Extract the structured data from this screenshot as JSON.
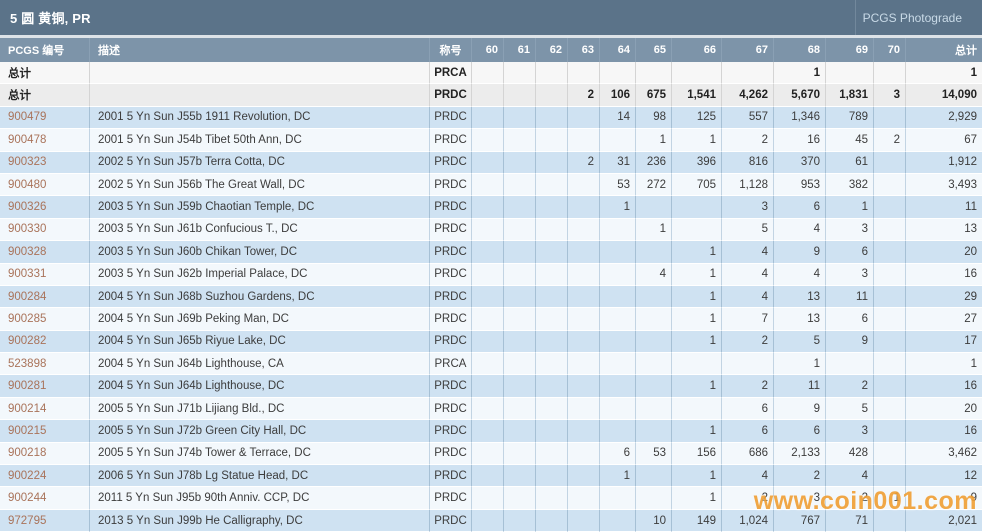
{
  "header": {
    "title": "5 圆 黄铜, PR",
    "right_label": "PCGS Photograde"
  },
  "watermark": "www.coin001.com",
  "colors": {
    "title_bar": "#5b7389",
    "header_row": "#7d94a9",
    "row_blue": "#cfe2f2",
    "row_light": "#f3f8fc",
    "id_link": "#a9735a",
    "watermark_orange": "#ee9826"
  },
  "table": {
    "columns": [
      "PCGS 编号",
      "描述",
      "称号",
      "60",
      "61",
      "62",
      "63",
      "64",
      "65",
      "66",
      "67",
      "68",
      "69",
      "70",
      "总计"
    ],
    "rows": [
      {
        "id": "总计",
        "is_total": true,
        "desc": "",
        "designation": "PRCA",
        "grades": [
          "",
          "",
          "",
          "",
          "",
          "",
          "",
          "",
          "1",
          "",
          ""
        ],
        "total": "1"
      },
      {
        "id": "总计",
        "is_total": true,
        "desc": "",
        "designation": "PRDC",
        "grades": [
          "",
          "",
          "",
          "2",
          "106",
          "675",
          "1,541",
          "4,262",
          "5,670",
          "1,831",
          "3"
        ],
        "total": "14,090"
      },
      {
        "id": "900479",
        "is_total": false,
        "desc": "2001 5 Yn Sun J55b 1911 Revolution, DC",
        "designation": "PRDC",
        "grades": [
          "",
          "",
          "",
          "",
          "14",
          "98",
          "125",
          "557",
          "1,346",
          "789",
          ""
        ],
        "total": "2,929"
      },
      {
        "id": "900478",
        "is_total": false,
        "desc": "2001 5 Yn Sun J54b Tibet 50th Ann, DC",
        "designation": "PRDC",
        "grades": [
          "",
          "",
          "",
          "",
          "",
          "1",
          "1",
          "2",
          "16",
          "45",
          "2"
        ],
        "total": "67"
      },
      {
        "id": "900323",
        "is_total": false,
        "desc": "2002 5 Yn Sun J57b Terra Cotta, DC",
        "designation": "PRDC",
        "grades": [
          "",
          "",
          "",
          "2",
          "31",
          "236",
          "396",
          "816",
          "370",
          "61",
          ""
        ],
        "total": "1,912"
      },
      {
        "id": "900480",
        "is_total": false,
        "desc": "2002 5 Yn Sun J56b The Great Wall, DC",
        "designation": "PRDC",
        "grades": [
          "",
          "",
          "",
          "",
          "53",
          "272",
          "705",
          "1,128",
          "953",
          "382",
          ""
        ],
        "total": "3,493"
      },
      {
        "id": "900326",
        "is_total": false,
        "desc": "2003 5 Yn Sun J59b Chaotian Temple, DC",
        "designation": "PRDC",
        "grades": [
          "",
          "",
          "",
          "",
          "1",
          "",
          "",
          "3",
          "6",
          "1",
          ""
        ],
        "total": "11"
      },
      {
        "id": "900330",
        "is_total": false,
        "desc": "2003 5 Yn Sun J61b Confucious T., DC",
        "designation": "PRDC",
        "grades": [
          "",
          "",
          "",
          "",
          "",
          "1",
          "",
          "5",
          "4",
          "3",
          ""
        ],
        "total": "13"
      },
      {
        "id": "900328",
        "is_total": false,
        "desc": "2003 5 Yn Sun J60b Chikan Tower, DC",
        "designation": "PRDC",
        "grades": [
          "",
          "",
          "",
          "",
          "",
          "",
          "1",
          "4",
          "9",
          "6",
          ""
        ],
        "total": "20"
      },
      {
        "id": "900331",
        "is_total": false,
        "desc": "2003 5 Yn Sun J62b Imperial Palace, DC",
        "designation": "PRDC",
        "grades": [
          "",
          "",
          "",
          "",
          "",
          "4",
          "1",
          "4",
          "4",
          "3",
          ""
        ],
        "total": "16"
      },
      {
        "id": "900284",
        "is_total": false,
        "desc": "2004 5 Yn Sun J68b Suzhou Gardens, DC",
        "designation": "PRDC",
        "grades": [
          "",
          "",
          "",
          "",
          "",
          "",
          "1",
          "4",
          "13",
          "11",
          ""
        ],
        "total": "29"
      },
      {
        "id": "900285",
        "is_total": false,
        "desc": "2004 5 Yn Sun J69b Peking Man, DC",
        "designation": "PRDC",
        "grades": [
          "",
          "",
          "",
          "",
          "",
          "",
          "1",
          "7",
          "13",
          "6",
          ""
        ],
        "total": "27"
      },
      {
        "id": "900282",
        "is_total": false,
        "desc": "2004 5 Yn Sun J65b Riyue Lake, DC",
        "designation": "PRDC",
        "grades": [
          "",
          "",
          "",
          "",
          "",
          "",
          "1",
          "2",
          "5",
          "9",
          ""
        ],
        "total": "17"
      },
      {
        "id": "523898",
        "is_total": false,
        "desc": "2004 5 Yn Sun J64b Lighthouse, CA",
        "designation": "PRCA",
        "grades": [
          "",
          "",
          "",
          "",
          "",
          "",
          "",
          "",
          "1",
          "",
          ""
        ],
        "total": "1"
      },
      {
        "id": "900281",
        "is_total": false,
        "desc": "2004 5 Yn Sun J64b Lighthouse, DC",
        "designation": "PRDC",
        "grades": [
          "",
          "",
          "",
          "",
          "",
          "",
          "1",
          "2",
          "11",
          "2",
          ""
        ],
        "total": "16"
      },
      {
        "id": "900214",
        "is_total": false,
        "desc": "2005 5 Yn Sun J71b Lijiang Bld., DC",
        "designation": "PRDC",
        "grades": [
          "",
          "",
          "",
          "",
          "",
          "",
          "",
          "6",
          "9",
          "5",
          ""
        ],
        "total": "20"
      },
      {
        "id": "900215",
        "is_total": false,
        "desc": "2005 5 Yn Sun J72b Green City Hall, DC",
        "designation": "PRDC",
        "grades": [
          "",
          "",
          "",
          "",
          "",
          "",
          "1",
          "6",
          "6",
          "3",
          ""
        ],
        "total": "16"
      },
      {
        "id": "900218",
        "is_total": false,
        "desc": "2005 5 Yn Sun J74b Tower & Terrace, DC",
        "designation": "PRDC",
        "grades": [
          "",
          "",
          "",
          "",
          "6",
          "53",
          "156",
          "686",
          "2,133",
          "428",
          ""
        ],
        "total": "3,462"
      },
      {
        "id": "900224",
        "is_total": false,
        "desc": "2006 5 Yn Sun J78b Lg Statue Head, DC",
        "designation": "PRDC",
        "grades": [
          "",
          "",
          "",
          "",
          "1",
          "",
          "1",
          "4",
          "2",
          "4",
          ""
        ],
        "total": "12"
      },
      {
        "id": "900244",
        "is_total": false,
        "desc": "2011 5 Yn Sun J95b 90th Anniv. CCP, DC",
        "designation": "PRDC",
        "grades": [
          "",
          "",
          "",
          "",
          "",
          "",
          "1",
          "2",
          "3",
          "2",
          "1"
        ],
        "total": "9"
      },
      {
        "id": "972795",
        "is_total": false,
        "desc": "2013 5 Yn Sun J99b He Calligraphy, DC",
        "designation": "PRDC",
        "grades": [
          "",
          "",
          "",
          "",
          "",
          "10",
          "149",
          "1,024",
          "767",
          "71",
          ""
        ],
        "total": "2,021"
      }
    ]
  }
}
